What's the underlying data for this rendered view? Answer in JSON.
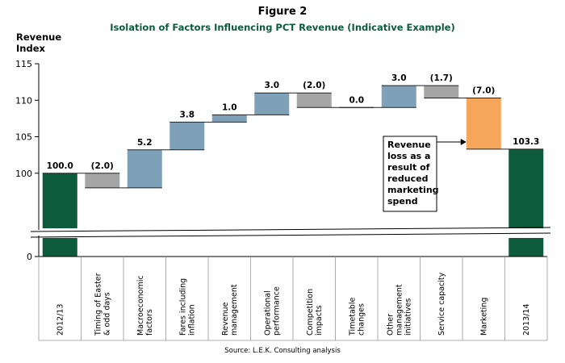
{
  "figure_label": "Figure 2",
  "title": "Isolation of Factors Influencing PCT Revenue (Indicative Example)",
  "source": "Source: L.E.K. Consulting analysis",
  "chart_data": {
    "type": "bar",
    "subtype": "waterfall",
    "ylabel": [
      "Revenue",
      "Index"
    ],
    "ylim": [
      95,
      115
    ],
    "yticks": [
      100,
      105,
      110,
      115
    ],
    "y_axis_zero_label": "0",
    "axis_break": true,
    "categories": [
      [
        "2012/13"
      ],
      [
        "Timing of Easter",
        "& odd days"
      ],
      [
        "Macroeconomic",
        "factors"
      ],
      [
        "Fares including",
        "inflation"
      ],
      [
        "Revenue",
        "management"
      ],
      [
        "Operational",
        "performance"
      ],
      [
        "Competition",
        "impacts"
      ],
      [
        "Timetable",
        "changes"
      ],
      [
        "Other",
        "management",
        "initiatives"
      ],
      [
        "Service capacity"
      ],
      [
        "Marketing"
      ],
      [
        "2013/14"
      ]
    ],
    "values": [
      100.0,
      -2.0,
      5.2,
      3.8,
      1.0,
      3.0,
      -2.0,
      0.0,
      3.0,
      -1.7,
      -7.0,
      103.3
    ],
    "value_labels": [
      "100.0",
      "(2.0)",
      "5.2",
      "3.8",
      "1.0",
      "3.0",
      "(2.0)",
      "0.0",
      "3.0",
      "(1.7)",
      "(7.0)",
      "103.3"
    ],
    "bar_kinds": [
      "total",
      "change",
      "change",
      "change",
      "change",
      "change",
      "change",
      "change",
      "change",
      "change",
      "change",
      "total"
    ],
    "colors": {
      "total": "#0d5a3c",
      "increase": "#7fa1b8",
      "decrease": "#a5a5a6",
      "highlight": "#f5a65b",
      "title": "#0d5a3c"
    },
    "highlight_index": 10,
    "annotation": {
      "lines": [
        "Revenue",
        "loss as a",
        "result of",
        "reduced",
        "marketing",
        "spend"
      ],
      "target_index": 10
    }
  }
}
